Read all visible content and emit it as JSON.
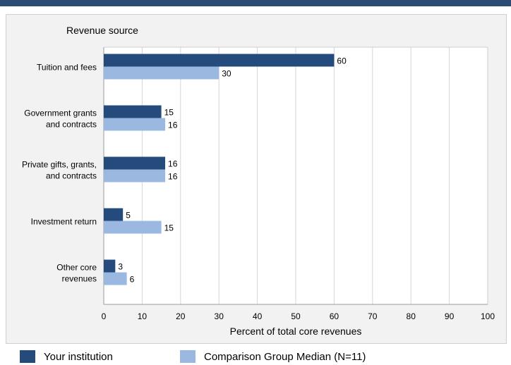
{
  "colors": {
    "accent": "#2b4b74",
    "series1": "#254b7c",
    "series2": "#9ab8e0",
    "grid": "#d6d6d6"
  },
  "chart_data": {
    "type": "bar",
    "orientation": "horizontal",
    "title": "",
    "category_axis_label": "Revenue source",
    "xlabel": "Percent of total core revenues",
    "xlim": [
      0,
      100
    ],
    "xticks": [
      0,
      10,
      20,
      30,
      40,
      50,
      60,
      70,
      80,
      90,
      100
    ],
    "grid": true,
    "legend_position": "bottom",
    "categories": [
      [
        "Tuition and fees"
      ],
      [
        "Government grants",
        "and contracts"
      ],
      [
        "Private gifts, grants,",
        "and contracts"
      ],
      [
        "Investment return"
      ],
      [
        "Other core",
        "revenues"
      ]
    ],
    "series": [
      {
        "name": "Your institution",
        "color": "#254b7c",
        "values": [
          60,
          15,
          16,
          5,
          3
        ]
      },
      {
        "name": "Comparison Group Median (N=11)",
        "color": "#9ab8e0",
        "values": [
          30,
          16,
          16,
          15,
          6
        ]
      }
    ]
  }
}
